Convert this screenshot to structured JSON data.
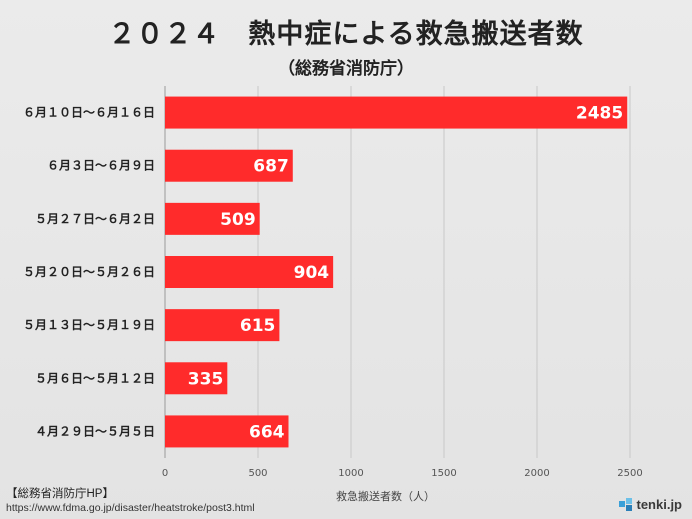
{
  "header": {
    "title": "２０２４　熱中症による救急搬送者数",
    "subtitle": "（総務省消防庁）"
  },
  "chart_data": {
    "type": "bar",
    "orientation": "horizontal",
    "title": "２０２４　熱中症による救急搬送者数",
    "subtitle": "（総務省消防庁）",
    "categories": [
      "６月１０日～６月１６日",
      "６月３日～６月９日",
      "５月２７日～６月２日",
      "５月２０日～５月２６日",
      "５月１３日～５月１９日",
      "５月６日～５月１２日",
      "４月２９日～５月５日"
    ],
    "values": [
      2485,
      687,
      509,
      904,
      615,
      335,
      664
    ],
    "xlabel": "救急搬送者数（人）",
    "ylabel": "",
    "xlim": [
      0,
      2500
    ],
    "xticks": [
      0,
      500,
      1000,
      1500,
      2000,
      2500
    ],
    "grid": true,
    "bar_color": "#ff2b2b",
    "data_labels": true
  },
  "footer": {
    "source": "【総務省消防庁HP】",
    "url": "https://www.fdma.go.jp/disaster/heatstroke/post3.html",
    "brand": "tenki.jp"
  }
}
